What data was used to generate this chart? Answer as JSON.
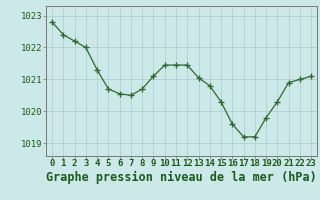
{
  "x": [
    0,
    1,
    2,
    3,
    4,
    5,
    6,
    7,
    8,
    9,
    10,
    11,
    12,
    13,
    14,
    15,
    16,
    17,
    18,
    19,
    20,
    21,
    22,
    23
  ],
  "y": [
    1022.8,
    1022.4,
    1022.2,
    1022.0,
    1021.3,
    1020.7,
    1020.55,
    1020.5,
    1020.7,
    1021.1,
    1021.45,
    1021.45,
    1021.45,
    1021.05,
    1020.8,
    1020.3,
    1019.6,
    1019.2,
    1019.2,
    1019.8,
    1020.3,
    1020.9,
    1021.0,
    1021.1
  ],
  "line_color": "#2d6a2d",
  "marker_color": "#2d6a2d",
  "bg_color": "#cde8e8",
  "grid_color": "#aacccc",
  "title": "Graphe pression niveau de la mer (hPa)",
  "ylabel_ticks": [
    1019,
    1020,
    1021,
    1022,
    1023
  ],
  "xlim": [
    -0.5,
    23.5
  ],
  "ylim": [
    1018.6,
    1023.3
  ],
  "title_fontsize": 8.5,
  "tick_fontsize": 6.5,
  "title_color": "#1a5c1a",
  "axis_color": "#777777"
}
